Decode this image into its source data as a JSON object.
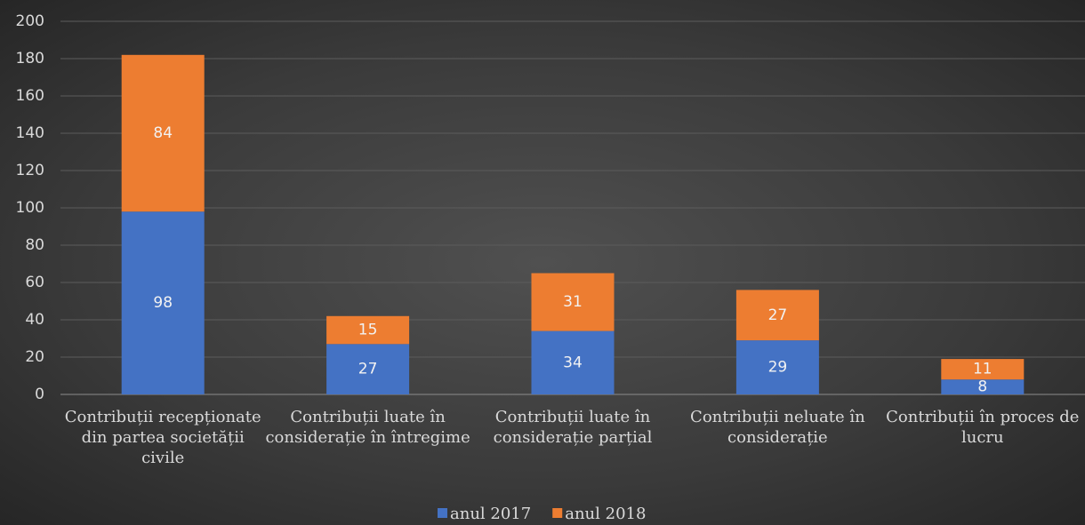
{
  "chart_data": {
    "type": "bar",
    "stacked": true,
    "categories": [
      "Contribuții recepționate din partea societății civile",
      "Contribuții luate în considerație în întregime",
      "Contribuții luate în considerație parțial",
      "Contribuții neluate în considerație",
      "Contribuții în proces de lucru"
    ],
    "series": [
      {
        "name": "anul 2017",
        "color": "#4472c4",
        "values": [
          98,
          27,
          34,
          29,
          8
        ]
      },
      {
        "name": "anul 2018",
        "color": "#ed7d31",
        "values": [
          84,
          15,
          31,
          27,
          11
        ]
      }
    ],
    "ylim": [
      0,
      200
    ],
    "yticks": [
      0,
      20,
      40,
      60,
      80,
      100,
      120,
      140,
      160,
      180,
      200
    ],
    "grid": true,
    "legend": "bottom"
  }
}
